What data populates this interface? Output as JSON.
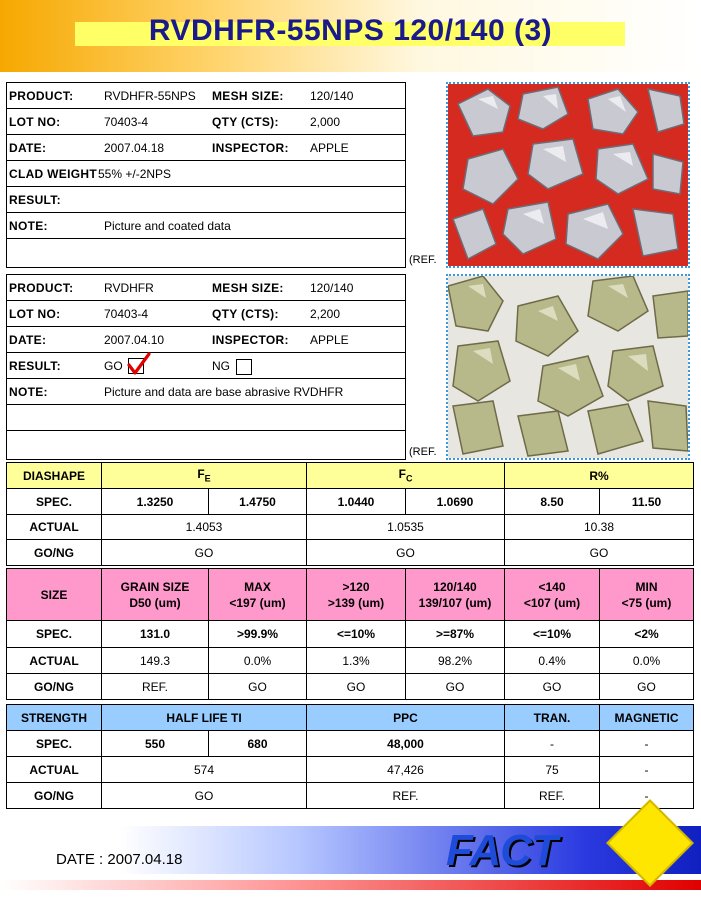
{
  "title": "RVDHFR-55NPS 120/140 (3)",
  "block1": {
    "product_label": "PRODUCT:",
    "product": "RVDHFR-55NPS",
    "mesh_label": "MESH SIZE:",
    "mesh": "120/140",
    "lot_label": "LOT NO:",
    "lot": "70403-4",
    "qty_label": "QTY (CTS):",
    "qty": "2,000",
    "date_label": "DATE:",
    "date": "2007.04.18",
    "inspector_label": "INSPECTOR:",
    "inspector": "APPLE",
    "clad_label": "CLAD WEIGHT",
    "clad": "55% +/-2NPS",
    "result_label": "RESULT:",
    "note_label": "NOTE:",
    "note": "Picture and coated data",
    "ref": "(REF."
  },
  "block2": {
    "product_label": "PRODUCT:",
    "product": "RVDHFR",
    "mesh_label": "MESH SIZE:",
    "mesh": "120/140",
    "lot_label": "LOT NO:",
    "lot": "70403-4",
    "qty_label": "QTY (CTS):",
    "qty": "2,200",
    "date_label": "DATE:",
    "date": "2007.04.10",
    "inspector_label": "INSPECTOR:",
    "inspector": "APPLE",
    "result_label": "RESULT:",
    "go": "GO",
    "ng": "NG",
    "go_checked": true,
    "ng_checked": false,
    "note_label": "NOTE:",
    "note": "Picture and data are base abrasive RVDHFR",
    "ref": "(REF."
  },
  "diashape": {
    "header": "DIASHAPE",
    "fe": "F",
    "fe_sub": "E",
    "fc": "F",
    "fc_sub": "C",
    "r": "R%",
    "spec_label": "SPEC.",
    "spec": [
      "1.3250",
      "1.4750",
      "1.0440",
      "1.0690",
      "8.50",
      "11.50"
    ],
    "actual_label": "ACTUAL",
    "actual": [
      "1.4053",
      "1.0535",
      "10.38"
    ],
    "gong_label": "GO/NG",
    "gong": [
      "GO",
      "GO",
      "GO"
    ]
  },
  "size": {
    "header": "SIZE",
    "cols": [
      {
        "l1": "GRAIN SIZE",
        "l2": "D50 (um)"
      },
      {
        "l1": "MAX",
        "l2": "<197 (um)"
      },
      {
        "l1": ">120",
        "l2": ">139 (um)"
      },
      {
        "l1": "120/140",
        "l2": "139/107 (um)"
      },
      {
        "l1": "<140",
        "l2": "<107 (um)"
      },
      {
        "l1": "MIN",
        "l2": "<75 (um)"
      }
    ],
    "spec_label": "SPEC.",
    "spec": [
      "131.0",
      ">99.9%",
      "<=10%",
      ">=87%",
      "<=10%",
      "<2%"
    ],
    "actual_label": "ACTUAL",
    "actual": [
      "149.3",
      "0.0%",
      "1.3%",
      "98.2%",
      "0.4%",
      "0.0%"
    ],
    "gong_label": "GO/NG",
    "gong": [
      "REF.",
      "GO",
      "GO",
      "GO",
      "GO",
      "GO"
    ]
  },
  "strength": {
    "header": "STRENGTH",
    "half_life": "HALF LIFE TI",
    "ppc": "PPC",
    "tran": "TRAN.",
    "magnetic": "MAGNETIC",
    "spec_label": "SPEC.",
    "spec": [
      "550",
      "680",
      "48,000",
      "-",
      "-"
    ],
    "actual_label": "ACTUAL",
    "actual": [
      "574",
      "47,426",
      "75",
      "-"
    ],
    "gong_label": "GO/NG",
    "gong": [
      "GO",
      "REF.",
      "REF.",
      "-"
    ]
  },
  "footer": {
    "date": "DATE : 2007.04.18",
    "logo": "FACT"
  }
}
